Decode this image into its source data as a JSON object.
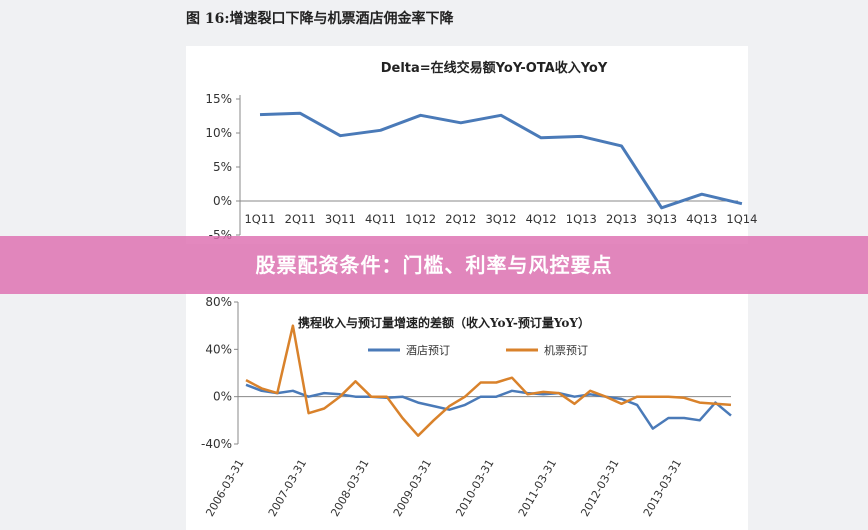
{
  "figure_title": "图 16:增速裂口下降与机票酒店佣金率下降",
  "banner_text": "股票配资条件：门槛、利率与风控要点",
  "colors": {
    "series_blue": "#4a7ab8",
    "series_orange": "#d9822b",
    "banner": "#dd6eb0"
  },
  "chart_data": [
    {
      "type": "line",
      "title": "Delta=在线交易额YoY-OTA收入YoY",
      "categories": [
        "1Q11",
        "2Q11",
        "3Q11",
        "4Q11",
        "1Q12",
        "2Q12",
        "3Q12",
        "4Q12",
        "1Q13",
        "2Q13",
        "3Q13",
        "4Q13",
        "1Q14"
      ],
      "series": [
        {
          "values": [
            12.7,
            12.9,
            9.6,
            10.4,
            12.6,
            11.5,
            12.6,
            9.3,
            9.5,
            8.1,
            -1.0,
            1.0,
            -0.4
          ]
        }
      ],
      "ylim": [
        -5,
        15
      ],
      "yticks": [
        "15%",
        "10%",
        "5%",
        "0%",
        "-5%"
      ],
      "grid": false
    },
    {
      "type": "line",
      "title": "携程收入与预订量增速的差额（收入YoY-预订量YoY）",
      "x_tick_labels": [
        "2006-03-31",
        "2007-03-31",
        "2008-03-31",
        "2009-03-31",
        "2010-03-31",
        "2011-03-31",
        "2012-03-31",
        "2013-03-31"
      ],
      "series": [
        {
          "name": "酒店预订",
          "values": [
            10,
            5,
            3,
            5,
            0,
            3,
            2,
            0,
            0,
            -1,
            0,
            -5,
            -8,
            -11,
            -7,
            0,
            0,
            5,
            3,
            2,
            3,
            0,
            2,
            0,
            -2,
            -7,
            -27,
            -18,
            -18,
            -20,
            -5,
            -16
          ]
        },
        {
          "name": "机票预订",
          "values": [
            14,
            7,
            3,
            60,
            -14,
            -10,
            0,
            13,
            0,
            0,
            -18,
            -33,
            -20,
            -8,
            0,
            12,
            12,
            16,
            2,
            4,
            3,
            -6,
            5,
            0,
            -6,
            0,
            0,
            0,
            -1,
            -5,
            -6,
            -7
          ]
        }
      ],
      "ylim": [
        -40,
        80
      ],
      "yticks": [
        "80%",
        "40%",
        "0%",
        "-40%"
      ],
      "legend": "top",
      "grid": false
    }
  ]
}
